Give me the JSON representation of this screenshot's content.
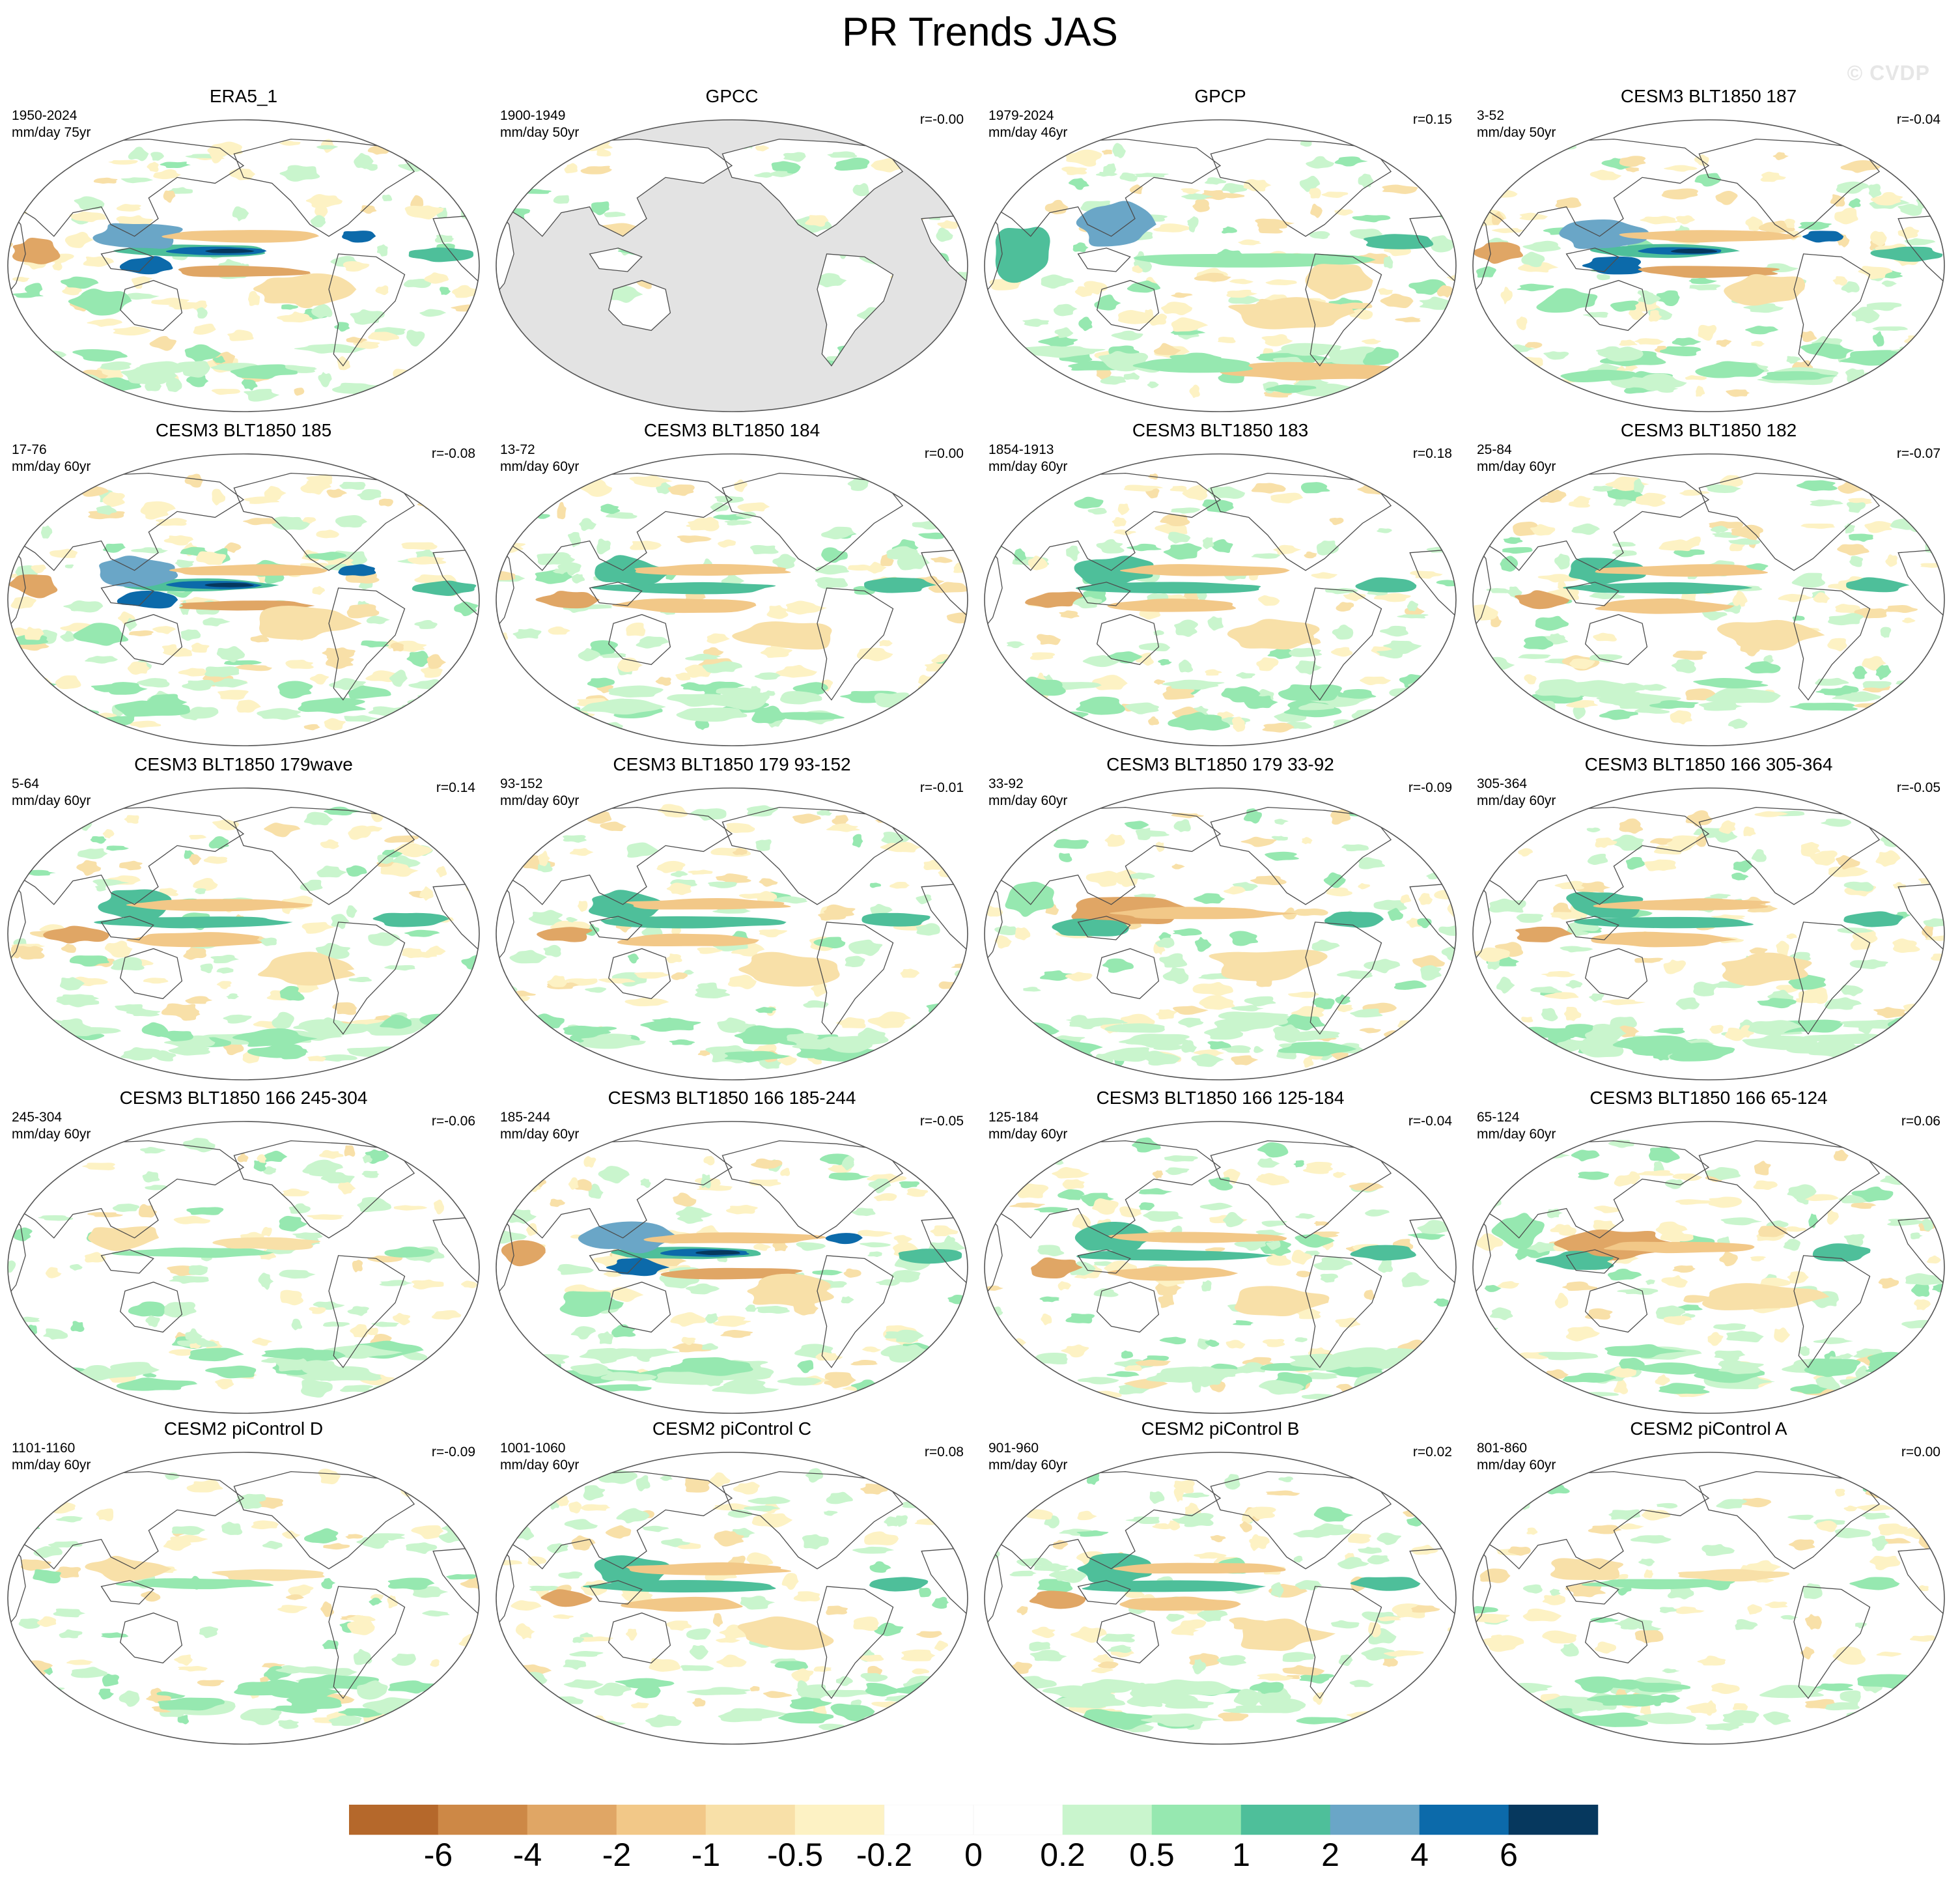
{
  "title": "PR Trends JAS",
  "watermark": "© CVDP",
  "panels": [
    {
      "title": "ERA5_1",
      "period": "1950-2024",
      "units": "mm/day 75yr",
      "r": "",
      "gray_ocean": false,
      "pattern": "era5"
    },
    {
      "title": "GPCC",
      "period": "1900-1949",
      "units": "mm/day 50yr",
      "r": "r=-0.00",
      "gray_ocean": true,
      "pattern": "gpcc"
    },
    {
      "title": "GPCP",
      "period": "1979-2024",
      "units": "mm/day 46yr",
      "r": "r=0.15",
      "gray_ocean": false,
      "pattern": "gpcp"
    },
    {
      "title": "CESM3 BLT1850 187",
      "period": "3-52",
      "units": "mm/day 50yr",
      "r": "r=-0.04",
      "gray_ocean": false,
      "pattern": "strongwet"
    },
    {
      "title": "CESM3 BLT1850 185",
      "period": "17-76",
      "units": "mm/day 60yr",
      "r": "r=-0.08",
      "gray_ocean": false,
      "pattern": "strongwet"
    },
    {
      "title": "CESM3 BLT1850 184",
      "period": "13-72",
      "units": "mm/day 60yr",
      "r": "r=0.00",
      "gray_ocean": false,
      "pattern": "moderate"
    },
    {
      "title": "CESM3 BLT1850 183",
      "period": "1854-1913",
      "units": "mm/day 60yr",
      "r": "r=0.18",
      "gray_ocean": false,
      "pattern": "moderate"
    },
    {
      "title": "CESM3 BLT1850 182",
      "period": "25-84",
      "units": "mm/day 60yr",
      "r": "r=-0.07",
      "gray_ocean": false,
      "pattern": "moderate"
    },
    {
      "title": "CESM3 BLT1850 179wave",
      "period": "5-64",
      "units": "mm/day 60yr",
      "r": "r=0.14",
      "gray_ocean": false,
      "pattern": "moderate"
    },
    {
      "title": "CESM3 BLT1850 179 93-152",
      "period": "93-152",
      "units": "mm/day 60yr",
      "r": "r=-0.01",
      "gray_ocean": false,
      "pattern": "moderate"
    },
    {
      "title": "CESM3 BLT1850 179 33-92",
      "period": "33-92",
      "units": "mm/day 60yr",
      "r": "r=-0.09",
      "gray_ocean": false,
      "pattern": "dry"
    },
    {
      "title": "CESM3 BLT1850 166 305-364",
      "period": "305-364",
      "units": "mm/day 60yr",
      "r": "r=-0.05",
      "gray_ocean": false,
      "pattern": "moderate"
    },
    {
      "title": "CESM3 BLT1850 166 245-304",
      "period": "245-304",
      "units": "mm/day 60yr",
      "r": "r=-0.06",
      "gray_ocean": false,
      "pattern": "weak"
    },
    {
      "title": "CESM3 BLT1850 166 185-244",
      "period": "185-244",
      "units": "mm/day 60yr",
      "r": "r=-0.05",
      "gray_ocean": false,
      "pattern": "strongwet"
    },
    {
      "title": "CESM3 BLT1850 166 125-184",
      "period": "125-184",
      "units": "mm/day 60yr",
      "r": "r=-0.04",
      "gray_ocean": false,
      "pattern": "moderate"
    },
    {
      "title": "CESM3 BLT1850 166 65-124",
      "period": "65-124",
      "units": "mm/day 60yr",
      "r": "r=0.06",
      "gray_ocean": false,
      "pattern": "dry"
    },
    {
      "title": "CESM2 piControl D",
      "period": "1101-1160",
      "units": "mm/day 60yr",
      "r": "r=-0.09",
      "gray_ocean": false,
      "pattern": "weak"
    },
    {
      "title": "CESM2 piControl C",
      "period": "1001-1060",
      "units": "mm/day 60yr",
      "r": "r=0.08",
      "gray_ocean": false,
      "pattern": "moderate"
    },
    {
      "title": "CESM2 piControl B",
      "period": "901-960",
      "units": "mm/day 60yr",
      "r": "r=0.02",
      "gray_ocean": false,
      "pattern": "moderate"
    },
    {
      "title": "CESM2 piControl A",
      "period": "801-860",
      "units": "mm/day 60yr",
      "r": "r=0.00",
      "gray_ocean": false,
      "pattern": "weak"
    }
  ],
  "colorbar": {
    "colors": [
      "#b5682b",
      "#cd8846",
      "#e0a665",
      "#f2c888",
      "#f8e0a8",
      "#fdf2c4",
      "#ffffff",
      "#ffffff",
      "#c9f5cd",
      "#96e8b0",
      "#4ebf9a",
      "#6aa6c7",
      "#0c6aaa",
      "#06385e"
    ],
    "labels": [
      "-6",
      "-4",
      "-2",
      "-1",
      "-0.5",
      "-0.2",
      "0",
      "0.2",
      "0.5",
      "1",
      "2",
      "4",
      "6"
    ]
  }
}
